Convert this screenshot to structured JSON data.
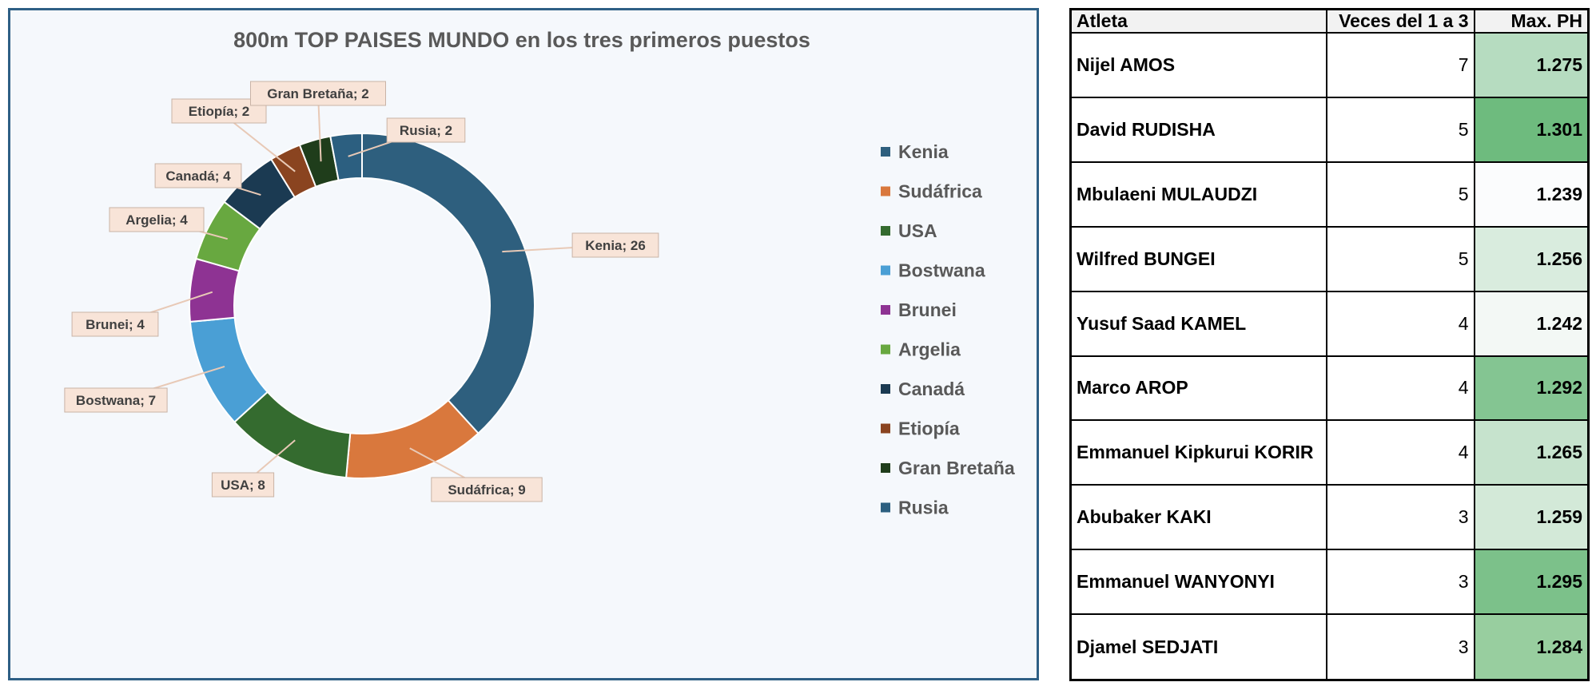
{
  "chart_data": {
    "type": "pie",
    "title": "800m TOP PAISES MUNDO en los tres primeros puestos",
    "categories": [
      "Kenia",
      "Sudáfrica",
      "USA",
      "Bostwana",
      "Brunei",
      "Argelia",
      "Canadá",
      "Etiopía",
      "Gran Bretaña",
      "Rusia"
    ],
    "values": [
      26,
      9,
      8,
      7,
      4,
      4,
      4,
      2,
      2,
      2
    ],
    "colors": [
      "#2e5f7e",
      "#d9783d",
      "#346b2f",
      "#4a9fd5",
      "#8e3393",
      "#68a840",
      "#1b3a52",
      "#8a4420",
      "#1f3d1b",
      "#2c5f80"
    ],
    "data_labels": [
      "Kenia; 26",
      "Sudáfrica; 9",
      "USA; 8",
      "Bostwana; 7",
      "Brunei; 4",
      "Argelia; 4",
      "Canadá; 4",
      "Etiopía; 2",
      "Gran Bretaña; 2",
      "Rusia; 2"
    ],
    "legend_position": "right",
    "donut": true
  },
  "table": {
    "headers": [
      "Atleta",
      "Veces del 1 a 3",
      "Max. PH"
    ],
    "rows": [
      {
        "name": "Nijel AMOS",
        "count": "7",
        "max": "1.275",
        "color": "#b6dcc0"
      },
      {
        "name": "David RUDISHA",
        "count": "5",
        "max": "1.301",
        "color": "#6ebb7e"
      },
      {
        "name": "Mbulaeni MULAUDZI",
        "count": "5",
        "max": "1.239",
        "color": "#fbfcfd"
      },
      {
        "name": "Wilfred BUNGEI",
        "count": "5",
        "max": "1.256",
        "color": "#d9ecde"
      },
      {
        "name": "Yusuf Saad KAMEL",
        "count": "4",
        "max": "1.242",
        "color": "#f3f8f5"
      },
      {
        "name": "Marco AROP",
        "count": "4",
        "max": "1.292",
        "color": "#84c592"
      },
      {
        "name": "Emmanuel Kipkurui KORIR",
        "count": "4",
        "max": "1.265",
        "color": "#c6e3cd"
      },
      {
        "name": "Abubaker KAKI",
        "count": "3",
        "max": "1.259",
        "color": "#d3e9d8"
      },
      {
        "name": "Emmanuel WANYONYI",
        "count": "3",
        "max": "1.295",
        "color": "#7cc18a"
      },
      {
        "name": "Djamel SEDJATI",
        "count": "3",
        "max": "1.284",
        "color": "#98ce9f"
      }
    ]
  }
}
